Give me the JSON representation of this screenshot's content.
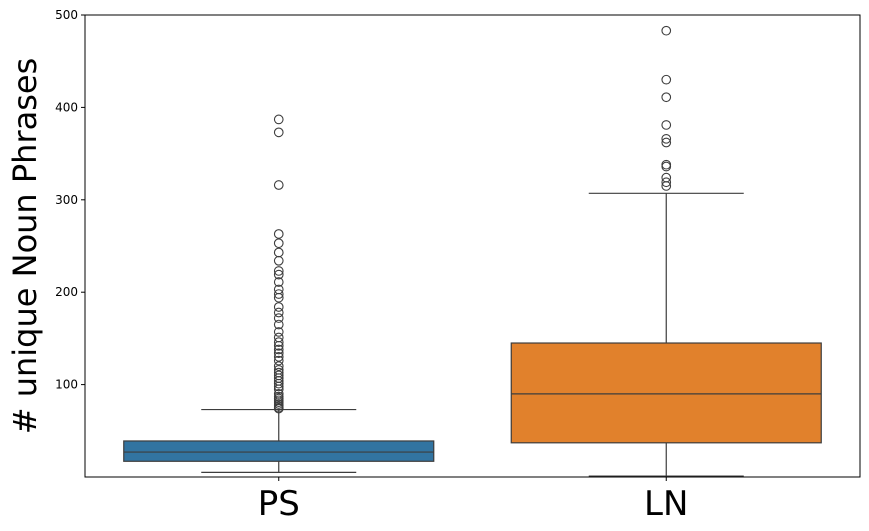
{
  "chart_data": {
    "type": "box",
    "title": "",
    "xlabel": "",
    "ylabel": "# unique Noun Phrases",
    "ylim": [
      0,
      500
    ],
    "yticks": [
      100,
      200,
      300,
      400,
      500
    ],
    "categories": [
      "PS",
      "LN"
    ],
    "grid": false,
    "legend": "none",
    "boxes": [
      {
        "category": "PS",
        "color": "#3274a1",
        "whisker_low": 5,
        "q1": 17,
        "median": 27,
        "q3": 39,
        "whisker_high": 73,
        "outliers": [
          74,
          75,
          77,
          79,
          81,
          83,
          85,
          87,
          90,
          95,
          98,
          101,
          104,
          107,
          110,
          113,
          116,
          120,
          126,
          130,
          134,
          138,
          142,
          146,
          151,
          157,
          165,
          172,
          178,
          184,
          194,
          198,
          203,
          211,
          219,
          223,
          234,
          243,
          253,
          263,
          316,
          373,
          387
        ]
      },
      {
        "category": "LN",
        "color": "#e1812c",
        "whisker_low": 1,
        "q1": 37,
        "median": 90,
        "q3": 145,
        "whisker_high": 307,
        "outliers": [
          315,
          319,
          324,
          336,
          338,
          362,
          366,
          381,
          411,
          430,
          483
        ]
      }
    ]
  }
}
